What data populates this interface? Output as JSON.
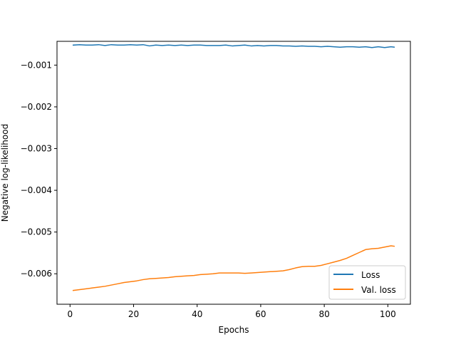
{
  "chart_data": {
    "type": "line",
    "title": "",
    "xlabel": "Epochs",
    "ylabel": "Negative log-likelihood",
    "xlim": [
      -4.1,
      107.1
    ],
    "ylim": [
      -0.00673,
      -0.00043
    ],
    "xticks": [
      0,
      20,
      40,
      60,
      80,
      100
    ],
    "xtick_labels": [
      "0",
      "20",
      "40",
      "60",
      "80",
      "100"
    ],
    "yticks": [
      -0.001,
      -0.002,
      -0.003,
      -0.004,
      -0.005,
      -0.006
    ],
    "ytick_labels": [
      "−0.001",
      "−0.002",
      "−0.003",
      "−0.004",
      "−0.005",
      "−0.006"
    ],
    "grid": false,
    "legend_position": "lower-right",
    "series": [
      {
        "name": "Loss",
        "color": "#1f77b4",
        "x": [
          1,
          3,
          5,
          7,
          9,
          11,
          13,
          15,
          17,
          19,
          21,
          23,
          25,
          27,
          29,
          31,
          33,
          35,
          37,
          39,
          41,
          43,
          45,
          47,
          49,
          51,
          53,
          55,
          57,
          59,
          61,
          63,
          65,
          67,
          69,
          71,
          73,
          75,
          77,
          79,
          81,
          83,
          85,
          87,
          89,
          91,
          93,
          95,
          97,
          99,
          101,
          102
        ],
        "y": [
          -0.00052,
          -0.00051,
          -0.00052,
          -0.00052,
          -0.00051,
          -0.00053,
          -0.00051,
          -0.00052,
          -0.00052,
          -0.00051,
          -0.00052,
          -0.00051,
          -0.00054,
          -0.00052,
          -0.00053,
          -0.00052,
          -0.00053,
          -0.00052,
          -0.00053,
          -0.00052,
          -0.00052,
          -0.00053,
          -0.00053,
          -0.00053,
          -0.00052,
          -0.00054,
          -0.00053,
          -0.00052,
          -0.00054,
          -0.00053,
          -0.00054,
          -0.00053,
          -0.00053,
          -0.00054,
          -0.00054,
          -0.00055,
          -0.00054,
          -0.00055,
          -0.00055,
          -0.00056,
          -0.00055,
          -0.00056,
          -0.00057,
          -0.00056,
          -0.00056,
          -0.00057,
          -0.00056,
          -0.00058,
          -0.00056,
          -0.00058,
          -0.00056,
          -0.00057
        ]
      },
      {
        "name": "Val. loss",
        "color": "#ff7f0e",
        "x": [
          1,
          3,
          5,
          7,
          9,
          11,
          13,
          15,
          17,
          19,
          21,
          23,
          25,
          27,
          29,
          31,
          33,
          35,
          37,
          39,
          41,
          43,
          45,
          47,
          49,
          51,
          53,
          55,
          57,
          59,
          61,
          63,
          65,
          67,
          69,
          71,
          73,
          75,
          77,
          79,
          81,
          83,
          85,
          87,
          89,
          91,
          93,
          95,
          97,
          99,
          101,
          102
        ],
        "y": [
          -0.0064,
          -0.00638,
          -0.00636,
          -0.00634,
          -0.00632,
          -0.0063,
          -0.00627,
          -0.00624,
          -0.00621,
          -0.00619,
          -0.00617,
          -0.00614,
          -0.00612,
          -0.00611,
          -0.0061,
          -0.00609,
          -0.00607,
          -0.00606,
          -0.00605,
          -0.00604,
          -0.00602,
          -0.00601,
          -0.006,
          -0.00598,
          -0.00598,
          -0.00598,
          -0.00598,
          -0.00599,
          -0.00598,
          -0.00597,
          -0.00596,
          -0.00595,
          -0.00594,
          -0.00593,
          -0.0059,
          -0.00586,
          -0.00583,
          -0.00582,
          -0.00582,
          -0.0058,
          -0.00576,
          -0.00572,
          -0.00568,
          -0.00563,
          -0.00556,
          -0.00549,
          -0.00542,
          -0.0054,
          -0.00539,
          -0.00536,
          -0.00533,
          -0.00534
        ]
      }
    ]
  }
}
